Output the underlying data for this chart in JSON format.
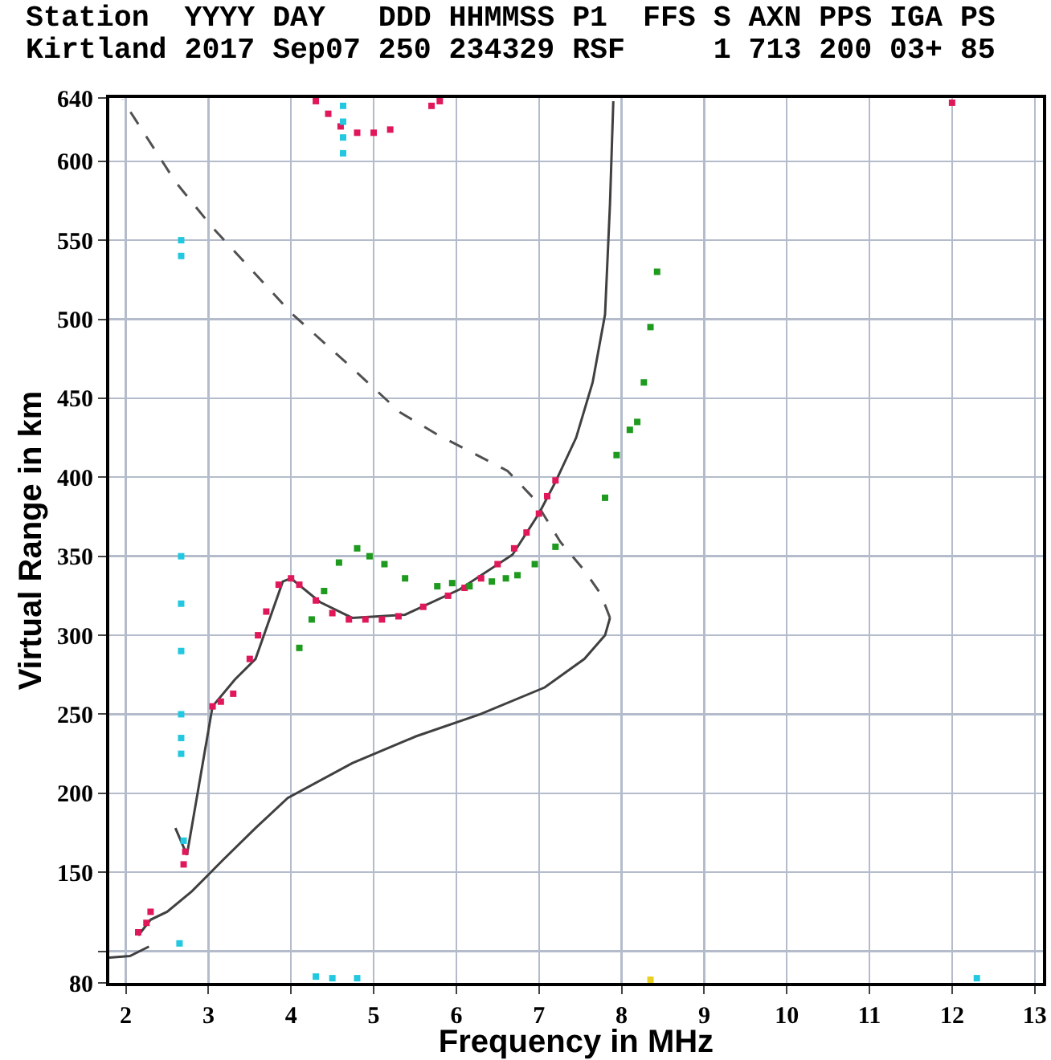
{
  "chart_data": {
    "type": "scatter",
    "title": "Station  YYYY DAY   DDD HHMMSS P1  FFS S AXN PPS IGA PS",
    "subtitle": "Kirtland 2017 Sep07 250 234329 RSF     1 713 200 03+ 85",
    "marker": "square",
    "xlabel": "Frequency in MHz",
    "ylabel": "Virtual Range in km",
    "xlim": [
      1.8,
      13.1
    ],
    "xticks": [
      2,
      3,
      4,
      5,
      6,
      7,
      8,
      9,
      10,
      11,
      12,
      13
    ],
    "ylim": [
      80,
      640
    ],
    "yticks": [
      80,
      {
        "value": 100,
        "label": null
      },
      150,
      200,
      250,
      300,
      350,
      400,
      450,
      500,
      550,
      600,
      640
    ],
    "grid": true,
    "series": [
      {
        "type": "line",
        "color": "#404040",
        "marker": "none",
        "line_style": "solid",
        "x": [
          1.8,
          2.05,
          2.28,
          null,
          2.15,
          2.3,
          2.5,
          2.8,
          3.18,
          3.57,
          3.96,
          4.74,
          5.51,
          6.29,
          7.07,
          7.55,
          7.8,
          7.86
        ],
        "values": [
          96,
          97,
          103,
          null,
          110,
          120,
          125,
          138,
          158,
          178,
          197,
          219,
          236,
          250,
          267,
          285,
          300,
          311
        ]
      },
      {
        "type": "line",
        "color": "#505050",
        "marker": "none",
        "line_style": "dashed",
        "x": [
          7.86,
          7.75,
          7.55,
          7.26,
          6.93,
          6.62,
          5.77,
          5.32,
          4.7,
          4.02,
          3.05,
          2.6,
          1.96
        ],
        "values": [
          311,
          326,
          341,
          359,
          387,
          404,
          427,
          441,
          471,
          503,
          558,
          587,
          639
        ]
      },
      {
        "type": "line",
        "color": "#404040",
        "marker": "none",
        "line_style": "solid",
        "x": [
          2.6,
          2.74,
          3.05,
          3.32,
          3.57,
          3.9,
          4.0,
          4.35,
          4.74,
          5.38,
          6.04,
          6.68,
          7.0,
          7.2,
          7.45,
          7.65,
          7.8,
          7.86,
          7.9
        ],
        "values": [
          178,
          161,
          255,
          272,
          285,
          334,
          336,
          321,
          311,
          313,
          329,
          351,
          377,
          397,
          425,
          460,
          503,
          573,
          638
        ]
      },
      {
        "color": "#e0185a",
        "x": [
          2.15,
          2.25,
          2.3,
          2.7,
          2.72,
          3.05,
          3.15,
          3.3,
          3.5,
          3.6,
          3.7,
          3.85,
          4.0,
          4.1,
          4.3,
          4.5,
          4.7,
          4.9,
          5.1,
          5.3,
          5.6,
          5.9,
          6.1,
          6.3,
          6.5,
          6.7,
          6.85,
          7.0,
          7.1,
          7.2,
          4.3,
          4.45,
          4.6,
          4.8,
          5.0,
          5.2,
          5.7,
          5.8,
          12.0
        ],
        "values": [
          112,
          118,
          125,
          155,
          163,
          255,
          258,
          263,
          285,
          300,
          315,
          332,
          336,
          332,
          322,
          314,
          310,
          310,
          310,
          312,
          318,
          325,
          330,
          336,
          345,
          355,
          365,
          377,
          388,
          398,
          638,
          630,
          622,
          618,
          618,
          620,
          635,
          638,
          637
        ]
      },
      {
        "color": "#1e9a1e",
        "x": [
          4.1,
          4.25,
          4.4,
          4.58,
          4.8,
          4.95,
          5.13,
          5.38,
          5.77,
          5.95,
          6.16,
          6.43,
          6.6,
          6.74,
          6.95,
          7.2,
          7.8,
          7.94,
          8.1,
          8.19,
          8.27,
          8.35,
          8.43
        ],
        "values": [
          292,
          310,
          328,
          346,
          355,
          350,
          345,
          336,
          331,
          333,
          331,
          334,
          336,
          338,
          345,
          356,
          387,
          414,
          430,
          435,
          460,
          495,
          530
        ]
      },
      {
        "color": "#22c8e0",
        "x": [
          2.67,
          2.67,
          2.67,
          2.67,
          2.67,
          2.67,
          2.67,
          2.67,
          2.65,
          2.7,
          4.63,
          4.63,
          4.63,
          4.63,
          4.3,
          4.5,
          4.8,
          12.3
        ],
        "values": [
          540,
          550,
          350,
          320,
          290,
          250,
          235,
          225,
          105,
          170,
          605,
          615,
          625,
          635,
          84,
          83,
          83,
          83
        ]
      },
      {
        "color": "#e8d020",
        "x": [
          8.35
        ],
        "values": [
          82
        ]
      }
    ]
  }
}
